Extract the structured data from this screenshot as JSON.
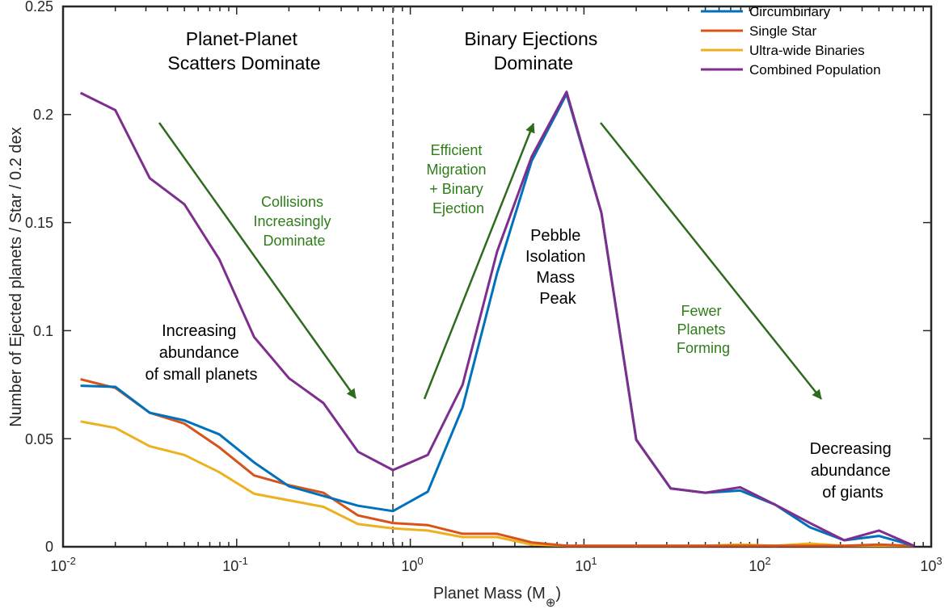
{
  "chart_data": {
    "type": "line",
    "xscale": "log",
    "xlim": [
      0.01,
      1000
    ],
    "ylim": [
      0,
      0.25
    ],
    "xlabel": "Planet Mass (M",
    "xlabel_sub": "⊕",
    "xlabel_close": ")",
    "ylabel": "Number of Ejected planets / Star / 0.2 dex",
    "x_ticks": [
      {
        "base": "10",
        "exp": "-2"
      },
      {
        "base": "10",
        "exp": "-1"
      },
      {
        "base": "10",
        "exp": "0"
      },
      {
        "base": "10",
        "exp": "1"
      },
      {
        "base": "10",
        "exp": "2"
      },
      {
        "base": "10",
        "exp": "3"
      }
    ],
    "y_ticks": [
      "0",
      "0.05",
      "0.1",
      "0.15",
      "0.2",
      "0.25"
    ],
    "grid": false,
    "legend_position": "top-right",
    "x": [
      0.0126,
      0.02,
      0.0316,
      0.05,
      0.0794,
      0.126,
      0.2,
      0.316,
      0.5,
      0.794,
      1.26,
      2.0,
      3.16,
      5.0,
      7.94,
      12.6,
      20.0,
      31.6,
      50.0,
      79.4,
      126,
      200,
      316,
      500,
      794
    ],
    "series": [
      {
        "name": "Circumbinary",
        "color": "#0072bd",
        "values": [
          0.0745,
          0.074,
          0.062,
          0.0585,
          0.052,
          0.039,
          0.028,
          0.0235,
          0.019,
          0.0165,
          0.0255,
          0.0645,
          0.1265,
          0.1785,
          0.2095,
          0.1545,
          0.0495,
          0.027,
          0.025,
          0.026,
          0.0195,
          0.009,
          0.003,
          0.005,
          0.0005
        ]
      },
      {
        "name": "Single Star",
        "color": "#d95319",
        "values": [
          0.0775,
          0.0735,
          0.062,
          0.057,
          0.046,
          0.033,
          0.0285,
          0.025,
          0.0145,
          0.011,
          0.01,
          0.006,
          0.006,
          0.002,
          0.0005,
          0.0005,
          0.0005,
          0.0005,
          0.0005,
          0.0005,
          0.0005,
          0.0005,
          0.0005,
          0.001,
          0.0005
        ]
      },
      {
        "name": "Ultra-wide Binaries",
        "color": "#edb120",
        "values": [
          0.058,
          0.055,
          0.0465,
          0.0425,
          0.0345,
          0.0245,
          0.0215,
          0.0185,
          0.0105,
          0.0085,
          0.0075,
          0.0045,
          0.0045,
          0.001,
          0.0005,
          0.0005,
          0.0005,
          0.0005,
          0.0005,
          0.001,
          0.0005,
          0.0015,
          0.0005,
          0.0005,
          0.0005
        ]
      },
      {
        "name": "Combined Population",
        "color": "#7e2f8e",
        "values": [
          0.21,
          0.202,
          0.1705,
          0.1585,
          0.133,
          0.097,
          0.078,
          0.0665,
          0.044,
          0.0355,
          0.0425,
          0.075,
          0.1365,
          0.1805,
          0.2105,
          0.1545,
          0.0495,
          0.027,
          0.025,
          0.0275,
          0.0195,
          0.011,
          0.003,
          0.0075,
          0.0005
        ]
      }
    ],
    "divider_x": 0.794,
    "region_titles": [
      {
        "lines": [
          "Planet-Planet",
          "Scatters Dominate"
        ]
      },
      {
        "lines": [
          "Binary Ejections",
          "Dominate"
        ]
      }
    ],
    "annotations_black": [
      {
        "lines": [
          "Increasing",
          "abundance",
          "of small planets"
        ]
      },
      {
        "lines": [
          "Pebble",
          "Isolation",
          "Mass",
          "Peak"
        ]
      },
      {
        "lines": [
          "Decreasing",
          "abundance",
          "of giants"
        ]
      }
    ],
    "annotations_green": [
      {
        "lines": [
          "Collisions",
          "Increasingly",
          "Dominate"
        ]
      },
      {
        "lines": [
          "Efficient",
          "Migration",
          "+ Binary",
          "Ejection"
        ]
      },
      {
        "lines": [
          "Fewer",
          "Planets",
          "Forming"
        ]
      }
    ],
    "arrow_color": "#2e6b1e"
  }
}
